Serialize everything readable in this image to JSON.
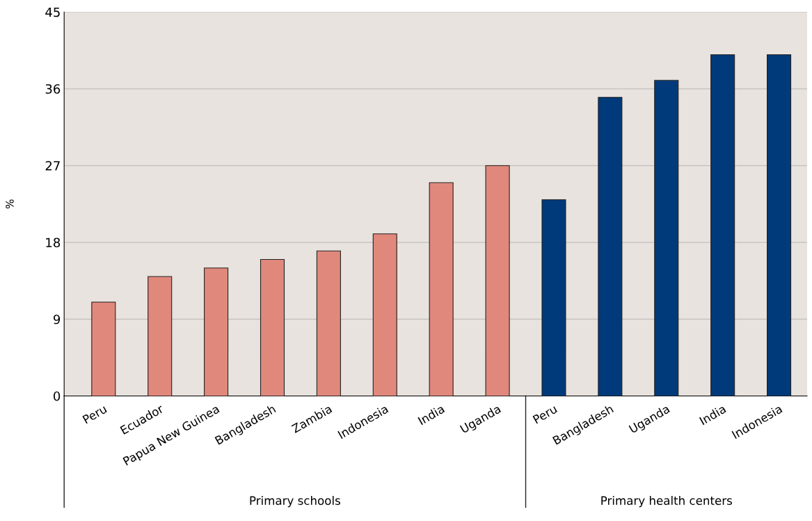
{
  "chart_data": {
    "type": "bar",
    "ylabel": "%",
    "categories": [
      "Peru",
      "Ecuador",
      "Papua New Guinea",
      "Bangladesh",
      "Zambia",
      "Indonesia",
      "India",
      "Uganda",
      "Peru",
      "Bangladesh",
      "Uganda",
      "India",
      "Indonesia"
    ],
    "values": [
      11,
      14,
      15,
      16,
      17,
      19,
      25,
      27,
      23,
      35,
      37,
      40,
      40
    ],
    "colors": [
      "#e0887c",
      "#e0887c",
      "#e0887c",
      "#e0887c",
      "#e0887c",
      "#e0887c",
      "#e0887c",
      "#e0887c",
      "#003a7a",
      "#003a7a",
      "#003a7a",
      "#003a7a",
      "#003a7a"
    ],
    "ylim": [
      0,
      45
    ],
    "yticks": [
      0,
      9,
      18,
      27,
      36,
      45
    ],
    "grid": "y",
    "annotations": [
      "Primary schools",
      "Primary health centers"
    ]
  }
}
